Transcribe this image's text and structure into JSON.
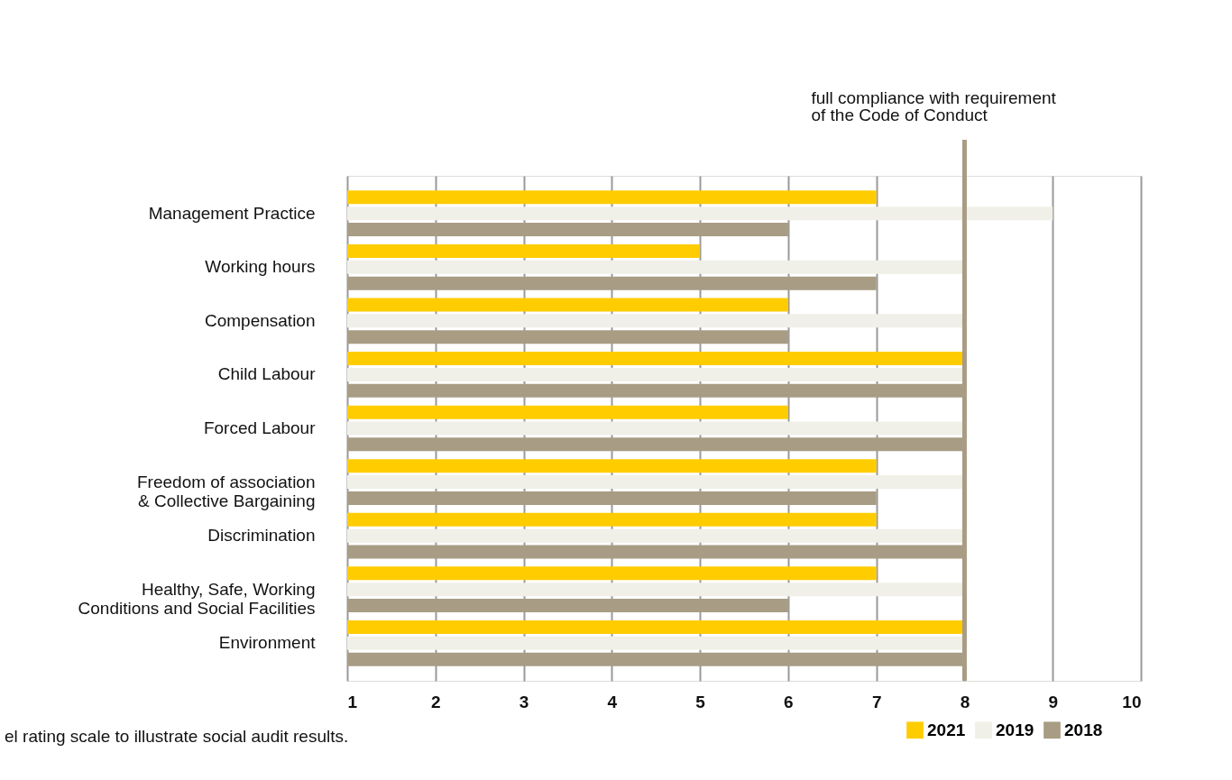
{
  "chart_data": {
    "type": "bar",
    "orientation": "horizontal",
    "categories": [
      "Management Practice",
      "Working hours",
      "Compensation",
      "Child Labour",
      "Forced Labour",
      "Freedom of association\n& Collective Bargaining",
      "Discrimination",
      "Healthy, Safe, Working\nConditions and Social Facilities",
      "Environment"
    ],
    "series": [
      {
        "name": "2021",
        "color": "#ffcc00",
        "values": [
          7,
          5,
          6,
          8,
          6,
          7,
          7,
          7,
          8
        ]
      },
      {
        "name": "2019",
        "color": "#f0f0e8",
        "values": [
          9,
          8,
          8,
          8,
          8,
          8,
          8,
          8,
          8
        ]
      },
      {
        "name": "2018",
        "color": "#a89c84",
        "values": [
          6,
          7,
          6,
          8,
          8,
          7,
          8,
          6,
          8
        ]
      }
    ],
    "xlim": [
      1,
      10
    ],
    "xticks": [
      1,
      2,
      3,
      4,
      5,
      6,
      7,
      8,
      9,
      10
    ],
    "grid": "x",
    "legend": "bottom right",
    "ref_lines": [
      {
        "axis": "x",
        "value": 8,
        "label": "full compliance with requirement\nof the Code of Conduct",
        "color": "#a89c84"
      }
    ],
    "annotations": [
      "el rating scale to illustrate social audit results."
    ]
  }
}
